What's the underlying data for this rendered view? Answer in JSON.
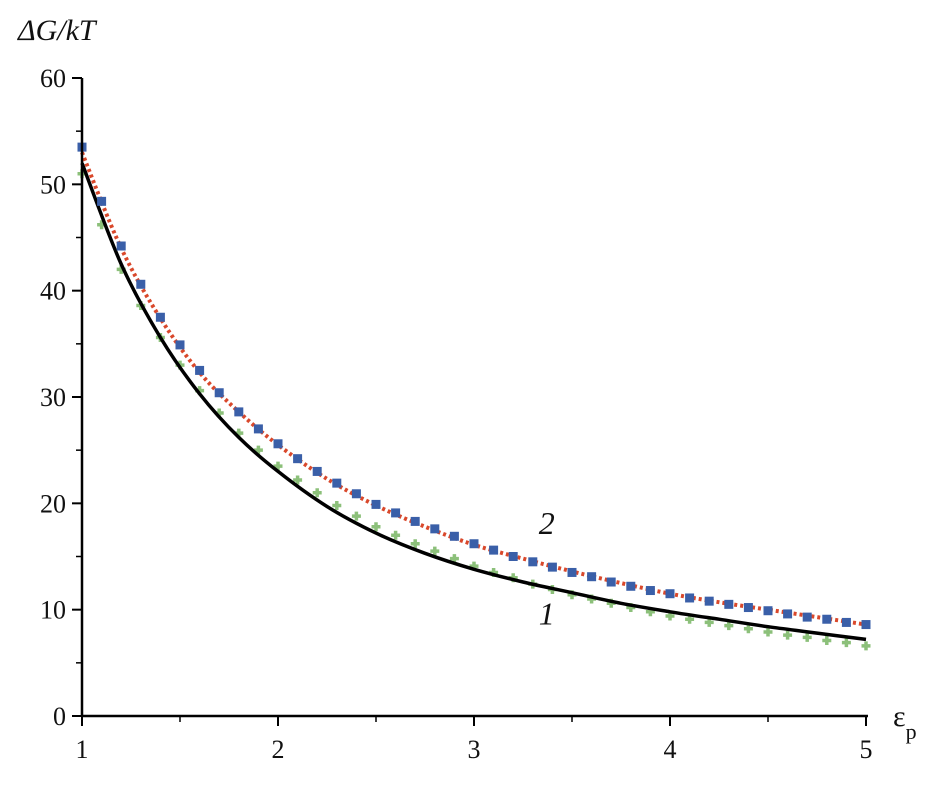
{
  "chart_data": {
    "type": "line",
    "title": "",
    "ylabel": "ΔG/kT",
    "xlabel": "εp",
    "xlim": [
      1,
      5
    ],
    "ylim": [
      0,
      60
    ],
    "x_ticks": [
      1,
      2,
      3,
      4,
      5
    ],
    "y_ticks": [
      0,
      10,
      20,
      30,
      40,
      50,
      60
    ],
    "grid": false,
    "legend": "none",
    "annotations": [
      {
        "text": "2",
        "x": 3.3,
        "y": 17.5
      },
      {
        "text": "1",
        "x": 3.3,
        "y": 9.0
      }
    ],
    "series": [
      {
        "style": "solid-black-line",
        "color": "#000000",
        "x": [
          1.0,
          1.2,
          1.4,
          1.6,
          1.8,
          2.0,
          2.25,
          2.5,
          2.75,
          3.0,
          3.25,
          3.5,
          3.75,
          4.0,
          4.25,
          4.5,
          4.75,
          5.0
        ],
        "values": [
          52.0,
          42.5,
          35.6,
          30.3,
          26.2,
          23.0,
          19.7,
          17.2,
          15.3,
          13.8,
          12.6,
          11.6,
          10.6,
          9.8,
          9.1,
          8.4,
          7.8,
          7.2
        ]
      },
      {
        "style": "dotted-red-line",
        "color": "#d9482b",
        "x": [
          1.0,
          1.2,
          1.4,
          1.6,
          1.8,
          2.0,
          2.25,
          2.5,
          2.75,
          3.0,
          3.25,
          3.5,
          3.75,
          4.0,
          4.25,
          4.5,
          4.75,
          5.0
        ],
        "values": [
          53.0,
          44.0,
          37.4,
          32.3,
          28.6,
          25.5,
          22.3,
          19.8,
          17.8,
          16.1,
          14.8,
          13.6,
          12.5,
          11.5,
          10.7,
          10.0,
          9.3,
          8.6
        ]
      },
      {
        "style": "blue-square-markers",
        "color": "#3a5fa8",
        "x": [
          1.0,
          1.1,
          1.2,
          1.3,
          1.4,
          1.5,
          1.6,
          1.7,
          1.8,
          1.9,
          2.0,
          2.1,
          2.2,
          2.3,
          2.4,
          2.5,
          2.6,
          2.7,
          2.8,
          2.9,
          3.0,
          3.1,
          3.2,
          3.3,
          3.4,
          3.5,
          3.6,
          3.7,
          3.8,
          3.9,
          4.0,
          4.1,
          4.2,
          4.3,
          4.4,
          4.5,
          4.6,
          4.7,
          4.8,
          4.9,
          5.0
        ],
        "values": [
          53.5,
          48.4,
          44.2,
          40.6,
          37.5,
          34.9,
          32.5,
          30.4,
          28.6,
          27.0,
          25.6,
          24.2,
          23.0,
          21.9,
          20.9,
          19.9,
          19.1,
          18.3,
          17.6,
          16.9,
          16.2,
          15.6,
          15.0,
          14.5,
          14.0,
          13.5,
          13.1,
          12.6,
          12.2,
          11.8,
          11.5,
          11.1,
          10.8,
          10.5,
          10.2,
          9.9,
          9.6,
          9.3,
          9.1,
          8.8,
          8.6
        ]
      },
      {
        "style": "green-plus-markers",
        "color": "#8cc07a",
        "x": [
          1.0,
          1.1,
          1.2,
          1.3,
          1.4,
          1.5,
          1.6,
          1.7,
          1.8,
          1.9,
          2.0,
          2.1,
          2.2,
          2.3,
          2.4,
          2.5,
          2.6,
          2.7,
          2.8,
          2.9,
          3.0,
          3.1,
          3.2,
          3.3,
          3.4,
          3.5,
          3.6,
          3.7,
          3.8,
          3.9,
          4.0,
          4.1,
          4.2,
          4.3,
          4.4,
          4.5,
          4.6,
          4.7,
          4.8,
          4.9,
          5.0
        ],
        "values": [
          51.0,
          46.2,
          42.0,
          38.6,
          35.6,
          33.0,
          30.6,
          28.5,
          26.6,
          25.0,
          23.5,
          22.2,
          21.0,
          19.8,
          18.8,
          17.8,
          17.0,
          16.2,
          15.5,
          14.8,
          14.1,
          13.5,
          13.0,
          12.4,
          11.9,
          11.4,
          11.0,
          10.6,
          10.2,
          9.8,
          9.4,
          9.1,
          8.8,
          8.5,
          8.2,
          7.9,
          7.6,
          7.4,
          7.1,
          6.9,
          6.6
        ]
      }
    ]
  }
}
